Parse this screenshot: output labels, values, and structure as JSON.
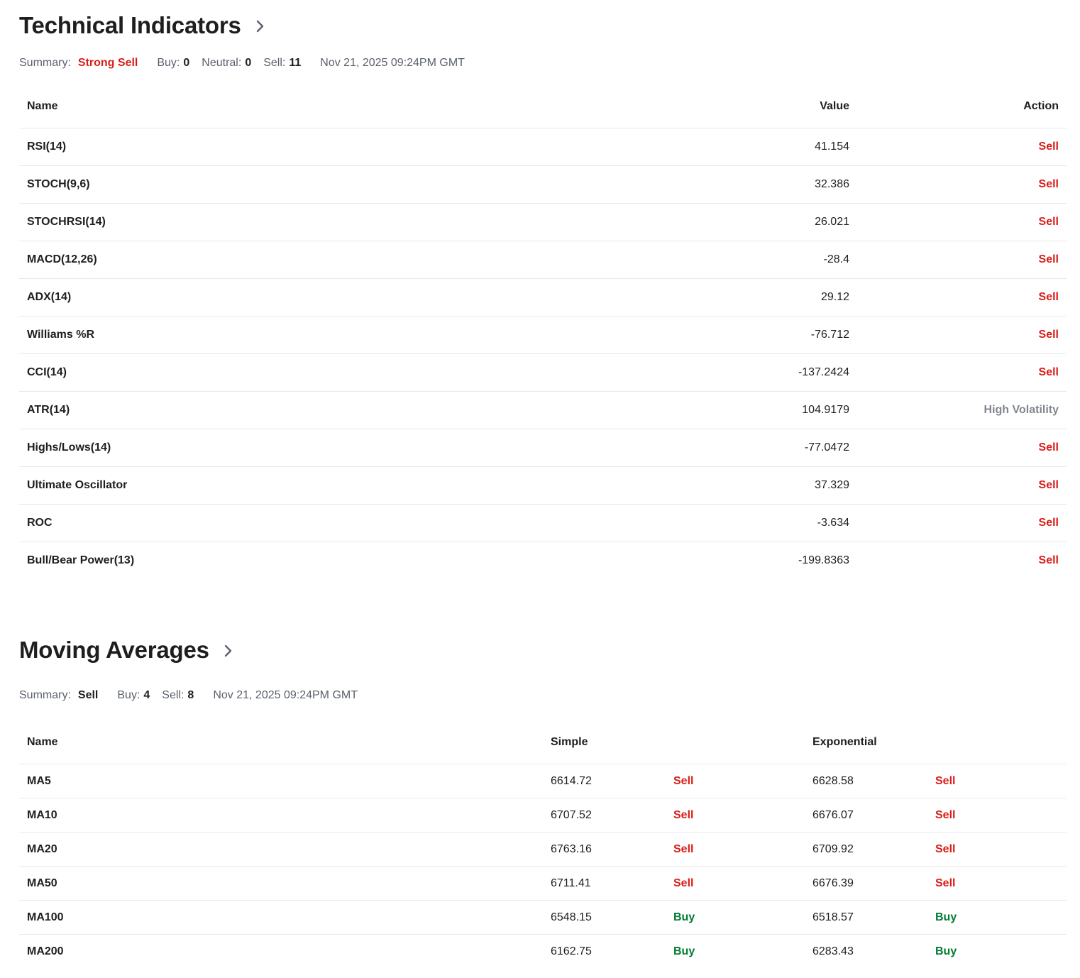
{
  "technical_indicators": {
    "title": "Technical Indicators",
    "summary": {
      "summary_label": "Summary:",
      "summary_value": "Strong Sell",
      "buy_label": "Buy:",
      "buy_value": "0",
      "neutral_label": "Neutral:",
      "neutral_value": "0",
      "sell_label": "Sell:",
      "sell_value": "11",
      "timestamp": "Nov 21, 2025 09:24PM GMT"
    },
    "columns": {
      "name": "Name",
      "value": "Value",
      "action": "Action"
    },
    "rows": [
      {
        "name": "RSI(14)",
        "value": "41.154",
        "action": "Sell"
      },
      {
        "name": "STOCH(9,6)",
        "value": "32.386",
        "action": "Sell"
      },
      {
        "name": "STOCHRSI(14)",
        "value": "26.021",
        "action": "Sell"
      },
      {
        "name": "MACD(12,26)",
        "value": "-28.4",
        "action": "Sell"
      },
      {
        "name": "ADX(14)",
        "value": "29.12",
        "action": "Sell"
      },
      {
        "name": "Williams %R",
        "value": "-76.712",
        "action": "Sell"
      },
      {
        "name": "CCI(14)",
        "value": "-137.2424",
        "action": "Sell"
      },
      {
        "name": "ATR(14)",
        "value": "104.9179",
        "action": "High Volatility"
      },
      {
        "name": "Highs/Lows(14)",
        "value": "-77.0472",
        "action": "Sell"
      },
      {
        "name": "Ultimate Oscillator",
        "value": "37.329",
        "action": "Sell"
      },
      {
        "name": "ROC",
        "value": "-3.634",
        "action": "Sell"
      },
      {
        "name": "Bull/Bear Power(13)",
        "value": "-199.8363",
        "action": "Sell"
      }
    ]
  },
  "moving_averages": {
    "title": "Moving Averages",
    "summary": {
      "summary_label": "Summary:",
      "summary_value": "Sell",
      "buy_label": "Buy:",
      "buy_value": "4",
      "sell_label": "Sell:",
      "sell_value": "8",
      "timestamp": "Nov 21, 2025 09:24PM GMT"
    },
    "columns": {
      "name": "Name",
      "simple": "Simple",
      "exponential": "Exponential"
    },
    "rows": [
      {
        "name": "MA5",
        "simple": "6614.72",
        "simple_action": "Sell",
        "exp": "6628.58",
        "exp_action": "Sell"
      },
      {
        "name": "MA10",
        "simple": "6707.52",
        "simple_action": "Sell",
        "exp": "6676.07",
        "exp_action": "Sell"
      },
      {
        "name": "MA20",
        "simple": "6763.16",
        "simple_action": "Sell",
        "exp": "6709.92",
        "exp_action": "Sell"
      },
      {
        "name": "MA50",
        "simple": "6711.41",
        "simple_action": "Sell",
        "exp": "6676.39",
        "exp_action": "Sell"
      },
      {
        "name": "MA100",
        "simple": "6548.15",
        "simple_action": "Buy",
        "exp": "6518.57",
        "exp_action": "Buy"
      },
      {
        "name": "MA200",
        "simple": "6162.75",
        "simple_action": "Buy",
        "exp": "6283.43",
        "exp_action": "Buy"
      }
    ]
  },
  "colors": {
    "sell": "#d91e18",
    "buy": "#007c32",
    "neutral": "#80868f",
    "text": "#1e1e1e",
    "muted": "#5b616e",
    "divider": "#e6e9eb"
  },
  "icons": {
    "section_link": "chevron-right-icon"
  }
}
